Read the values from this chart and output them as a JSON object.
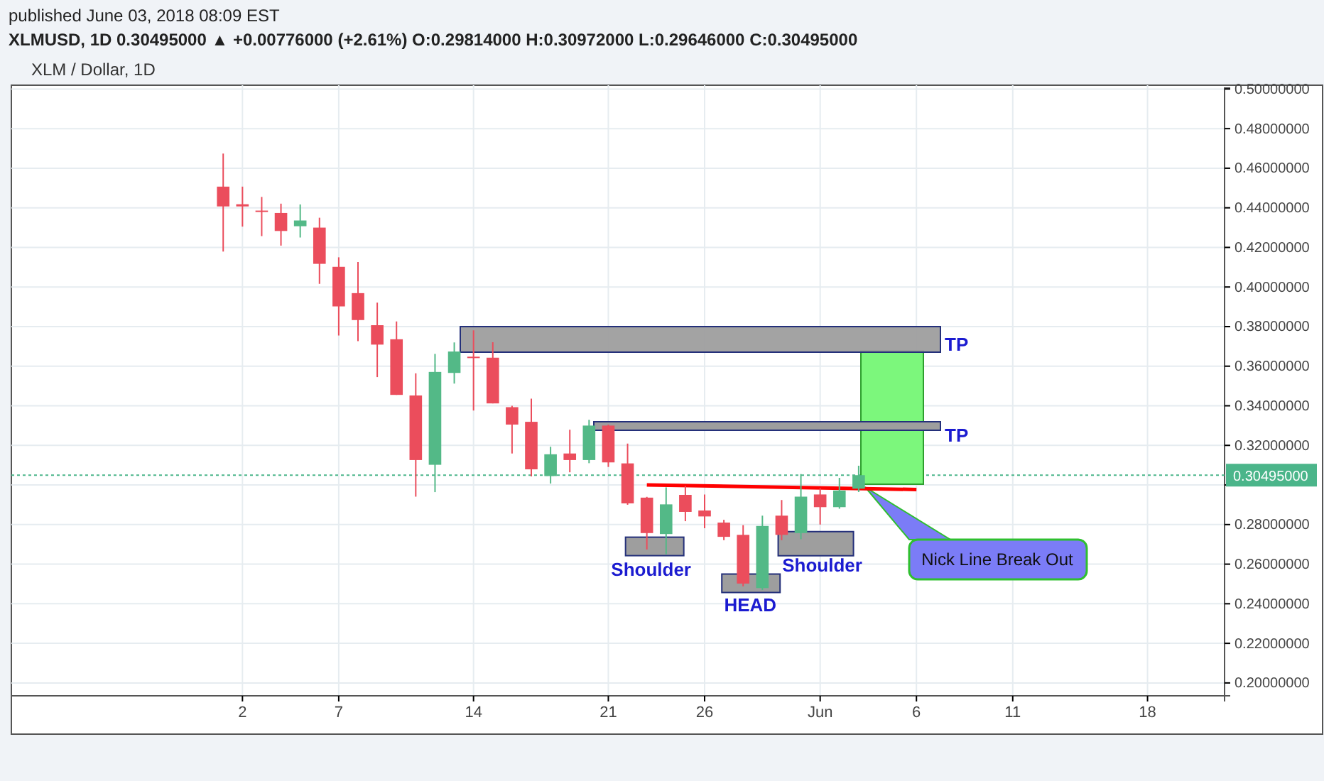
{
  "chart_data": {
    "type": "candlestick",
    "title": "XLM / Dollar, 1D",
    "subtitle": "XLMUSD, 1D 0.30495000 ▲ +0.00776000 (+2.61%) O:0.29814000 H:0.30972000 L:0.29646000 C:0.30495000",
    "annotations": [
      "published June 03, 2018 08:09 EST",
      "TP",
      "TP",
      {
        "text": "Shoulder",
        "x": "2018-05-23",
        "y": 0.2686
      },
      {
        "text": "HEAD",
        "x": "2018-05-28",
        "y": 0.2507
      },
      {
        "text": "Shoulder",
        "x": "2018-05-31",
        "y": 0.2707
      },
      "Nick Line Break Out"
    ],
    "x": [
      "2018-05-01",
      "2018-05-02",
      "2018-05-03",
      "2018-05-04",
      "2018-05-05",
      "2018-05-06",
      "2018-05-07",
      "2018-05-08",
      "2018-05-09",
      "2018-05-10",
      "2018-05-11",
      "2018-05-12",
      "2018-05-13",
      "2018-05-14",
      "2018-05-15",
      "2018-05-16",
      "2018-05-17",
      "2018-05-18",
      "2018-05-19",
      "2018-05-20",
      "2018-05-21",
      "2018-05-22",
      "2018-05-23",
      "2018-05-24",
      "2018-05-25",
      "2018-05-26",
      "2018-05-27",
      "2018-05-28",
      "2018-05-29",
      "2018-05-30",
      "2018-05-31",
      "2018-06-01",
      "2018-06-02",
      "2018-06-03"
    ],
    "ohlc": [
      [
        0.4507,
        0.4674,
        0.4179,
        0.4407
      ],
      [
        0.4418,
        0.4507,
        0.4305,
        0.4407
      ],
      [
        0.4386,
        0.4455,
        0.4257,
        0.4381
      ],
      [
        0.4374,
        0.4421,
        0.4209,
        0.4283
      ],
      [
        0.4307,
        0.4417,
        0.425,
        0.4336
      ],
      [
        0.43,
        0.435,
        0.4016,
        0.4117
      ],
      [
        0.4102,
        0.415,
        0.3755,
        0.3902
      ],
      [
        0.3969,
        0.4126,
        0.3726,
        0.3833
      ],
      [
        0.3807,
        0.3921,
        0.3545,
        0.3709
      ],
      [
        0.3736,
        0.3826,
        0.3455,
        0.3455
      ],
      [
        0.3452,
        0.3564,
        0.2941,
        0.3126
      ],
      [
        0.3102,
        0.3662,
        0.2964,
        0.3571
      ],
      [
        0.3566,
        0.372,
        0.3512,
        0.3674
      ],
      [
        0.3648,
        0.3781,
        0.3376,
        0.3641
      ],
      [
        0.3643,
        0.3721,
        0.3412,
        0.3412
      ],
      [
        0.3393,
        0.34,
        0.3159,
        0.3305
      ],
      [
        0.3319,
        0.3436,
        0.3043,
        0.3079
      ],
      [
        0.3045,
        0.3193,
        0.3007,
        0.3155
      ],
      [
        0.3159,
        0.3279,
        0.3064,
        0.3126
      ],
      [
        0.3126,
        0.3329,
        0.311,
        0.33
      ],
      [
        0.33,
        0.3305,
        0.3091,
        0.3114
      ],
      [
        0.3109,
        0.3209,
        0.29,
        0.2907
      ],
      [
        0.2936,
        0.294,
        0.2674,
        0.2757
      ],
      [
        0.2752,
        0.2988,
        0.265,
        0.2902
      ],
      [
        0.295,
        0.2995,
        0.2817,
        0.2864
      ],
      [
        0.2871,
        0.2952,
        0.2781,
        0.2841
      ],
      [
        0.281,
        0.2824,
        0.2721,
        0.2738
      ],
      [
        0.2748,
        0.2797,
        0.2488,
        0.2502
      ],
      [
        0.2479,
        0.2845,
        0.2469,
        0.2793
      ],
      [
        0.2845,
        0.2924,
        0.2721,
        0.2748
      ],
      [
        0.2757,
        0.3055,
        0.2726,
        0.2941
      ],
      [
        0.2952,
        0.2983,
        0.28,
        0.2888
      ],
      [
        0.2888,
        0.3036,
        0.288,
        0.29719
      ],
      [
        0.29814,
        0.30972,
        0.29646,
        0.30495
      ]
    ],
    "colors": [
      "#eb4d5c",
      "#eb4d5c",
      "#eb4d5c",
      "#eb4d5c",
      "#53b987",
      "#eb4d5c",
      "#eb4d5c",
      "#eb4d5c",
      "#eb4d5c",
      "#eb4d5c",
      "#eb4d5c",
      "#53b987",
      "#53b987",
      "#eb4d5c",
      "#eb4d5c",
      "#eb4d5c",
      "#eb4d5c",
      "#53b987",
      "#eb4d5c",
      "#53b987",
      "#eb4d5c",
      "#eb4d5c",
      "#eb4d5c",
      "#53b987",
      "#eb4d5c",
      "#eb4d5c",
      "#eb4d5c",
      "#eb4d5c",
      "#53b987",
      "#eb4d5c",
      "#53b987",
      "#eb4d5c",
      "#53b987",
      "#53b987"
    ],
    "series": [
      {
        "type": "line",
        "color": "#ff0000",
        "x": [
          "2018-05-23",
          "2018-06-06"
        ],
        "values": [
          0.3,
          0.2977
        ]
      }
    ],
    "xlim": [
      "2018-04-20",
      "2018-06-22"
    ],
    "xticks": [
      {
        "value": "2018-05-02",
        "label": "2"
      },
      {
        "value": "2018-05-07",
        "label": "7"
      },
      {
        "value": "2018-05-14",
        "label": "14"
      },
      {
        "value": "2018-05-21",
        "label": "21"
      },
      {
        "value": "2018-05-26",
        "label": "26"
      },
      {
        "value": "2018-06-01",
        "label": "Jun"
      },
      {
        "value": "2018-06-06",
        "label": "6"
      },
      {
        "value": "2018-06-11",
        "label": "11"
      },
      {
        "value": "2018-06-18",
        "label": "18"
      }
    ],
    "ylim": [
      0.1935,
      0.5005
    ],
    "yticks": [
      {
        "value": 0.2,
        "label": "0.20000000"
      },
      {
        "value": 0.22,
        "label": "0.22000000"
      },
      {
        "value": 0.24,
        "label": "0.24000000"
      },
      {
        "value": 0.26,
        "label": "0.26000000"
      },
      {
        "value": 0.28,
        "label": "0.28000000"
      },
      {
        "value": 0.3,
        "label": null
      },
      {
        "value": 0.32,
        "label": "0.32000000"
      },
      {
        "value": 0.34,
        "label": "0.34000000"
      },
      {
        "value": 0.36,
        "label": "0.36000000"
      },
      {
        "value": 0.38,
        "label": "0.38000000"
      },
      {
        "value": 0.4,
        "label": "0.40000000"
      },
      {
        "value": 0.42,
        "label": "0.42000000"
      },
      {
        "value": 0.44,
        "label": "0.44000000"
      },
      {
        "value": 0.46,
        "label": "0.46000000"
      },
      {
        "value": 0.48,
        "label": "0.48000000"
      },
      {
        "value": 0.5,
        "label": "0.50000000"
      }
    ],
    "grid": true,
    "ref_lines": [
      {
        "axis": "y",
        "value": 0.30495,
        "label": "0.30495000",
        "color": "#4bb58a",
        "line_style": "dotted"
      }
    ]
  }
}
